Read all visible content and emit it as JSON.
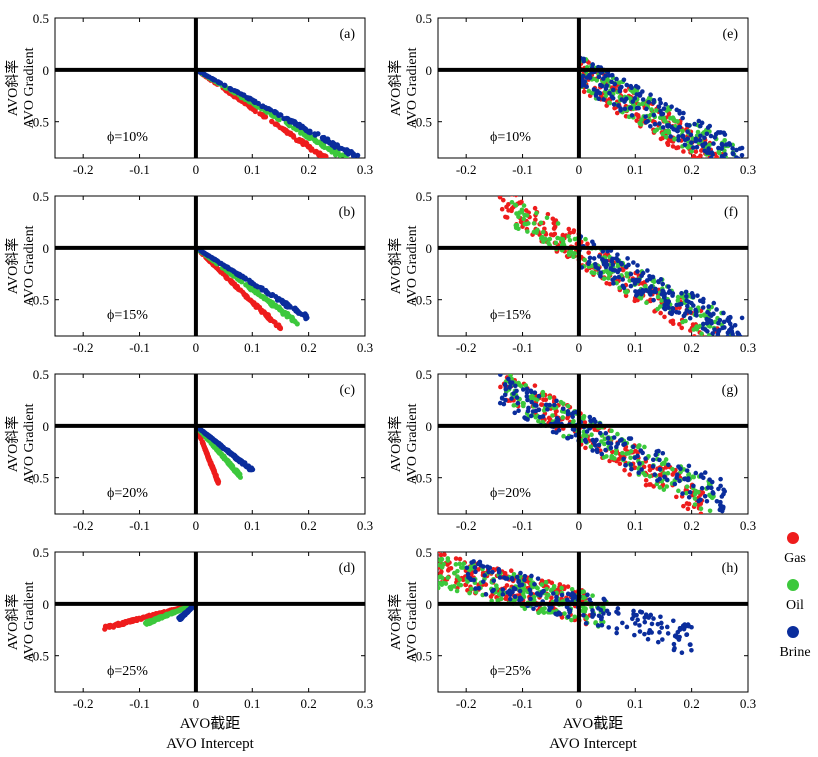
{
  "figure": {
    "ylabel_cn": "AVO斜率",
    "ylabel_en": "AVO Gradient",
    "xlabel_cn": "AVO截距",
    "xlabel_en": "AVO Intercept"
  },
  "legend": [
    {
      "label": "Gas",
      "color": "#ee1c1c"
    },
    {
      "label": "Oil",
      "color": "#3cc83c"
    },
    {
      "label": "Brine",
      "color": "#0a2d9c"
    }
  ],
  "chart_data": [
    {
      "type": "scatter",
      "panel": "(a)",
      "porosity": "ϕ=10%",
      "xlim": [
        -0.25,
        0.3
      ],
      "ylim": [
        -0.85,
        0.5
      ],
      "xticks": [
        "-0.2",
        "-0.1",
        "0",
        "0.1",
        "0.2",
        "0.3"
      ],
      "yticks": [
        "0.5",
        "0",
        "-0.5"
      ],
      "series": [
        {
          "name": "Gas",
          "x": [
            0,
            0.23
          ],
          "y": [
            0,
            -0.85
          ]
        },
        {
          "name": "Oil",
          "x": [
            0,
            0.265
          ],
          "y": [
            0,
            -0.85
          ]
        },
        {
          "name": "Brine",
          "x": [
            0,
            0.29
          ],
          "y": [
            0,
            -0.85
          ]
        }
      ]
    },
    {
      "type": "scatter",
      "panel": "(b)",
      "porosity": "ϕ=15%",
      "xlim": [
        -0.25,
        0.3
      ],
      "ylim": [
        -0.85,
        0.5
      ],
      "xticks": [
        "-0.2",
        "-0.1",
        "0",
        "0.1",
        "0.2",
        "0.3"
      ],
      "yticks": [
        "0.5",
        "0",
        "-0.5"
      ],
      "series": [
        {
          "name": "Gas",
          "x": [
            0,
            0.15
          ],
          "y": [
            0,
            -0.78
          ]
        },
        {
          "name": "Oil",
          "x": [
            0,
            0.18
          ],
          "y": [
            0,
            -0.72
          ]
        },
        {
          "name": "Brine",
          "x": [
            0,
            0.2
          ],
          "y": [
            0,
            -0.68
          ]
        }
      ]
    },
    {
      "type": "scatter",
      "panel": "(c)",
      "porosity": "ϕ=20%",
      "xlim": [
        -0.25,
        0.3
      ],
      "ylim": [
        -0.85,
        0.5
      ],
      "xticks": [
        "-0.2",
        "-0.1",
        "0",
        "0.1",
        "0.2",
        "0.3"
      ],
      "yticks": [
        "0.5",
        "0",
        "-0.5"
      ],
      "series": [
        {
          "name": "Gas",
          "x": [
            0,
            0.04
          ],
          "y": [
            0,
            -0.55
          ]
        },
        {
          "name": "Oil",
          "x": [
            0,
            0.08
          ],
          "y": [
            0,
            -0.49
          ]
        },
        {
          "name": "Brine",
          "x": [
            0,
            0.1
          ],
          "y": [
            0,
            -0.43
          ]
        }
      ]
    },
    {
      "type": "scatter",
      "panel": "(d)",
      "porosity": "ϕ=25%",
      "xlim": [
        -0.25,
        0.3
      ],
      "ylim": [
        -0.85,
        0.5
      ],
      "xticks": [
        "-0.2",
        "-0.1",
        "0",
        "0.1",
        "0.2",
        "0.3"
      ],
      "yticks": [
        "0.5",
        "0",
        "-0.5"
      ],
      "series": [
        {
          "name": "Gas",
          "x": [
            0,
            -0.16
          ],
          "y": [
            0,
            -0.23
          ]
        },
        {
          "name": "Oil",
          "x": [
            0,
            -0.09
          ],
          "y": [
            0,
            -0.19
          ]
        },
        {
          "name": "Brine",
          "x": [
            0,
            -0.03
          ],
          "y": [
            0,
            -0.15
          ]
        }
      ]
    },
    {
      "type": "scatter",
      "panel": "(e)",
      "porosity": "ϕ=10%",
      "xlim": [
        -0.25,
        0.3
      ],
      "ylim": [
        -0.85,
        0.5
      ],
      "xticks": [
        "-0.2",
        "-0.1",
        "0",
        "0.1",
        "0.2",
        "0.3"
      ],
      "yticks": [
        "0.5",
        "0",
        "-0.5"
      ],
      "series": [
        {
          "name": "Gas",
          "x_range": [
            0.0,
            0.26
          ],
          "slope": -3.5
        },
        {
          "name": "Oil",
          "x_range": [
            0.0,
            0.28
          ],
          "slope": -3.15
        },
        {
          "name": "Brine",
          "x_range": [
            0.0,
            0.3
          ],
          "slope": -2.9
        }
      ]
    },
    {
      "type": "scatter",
      "panel": "(f)",
      "porosity": "ϕ=15%",
      "xlim": [
        -0.25,
        0.3
      ],
      "ylim": [
        -0.85,
        0.5
      ],
      "xticks": [
        "-0.2",
        "-0.1",
        "0",
        "0.1",
        "0.2",
        "0.3"
      ],
      "yticks": [
        "0.5",
        "0",
        "-0.5"
      ],
      "series": [
        {
          "name": "Gas",
          "x_range": [
            -0.14,
            0.25
          ],
          "slope": -3.4
        },
        {
          "name": "Oil",
          "x_range": [
            -0.12,
            0.27
          ],
          "slope": -3.0
        },
        {
          "name": "Brine",
          "x_range": [
            0.0,
            0.29
          ],
          "slope": -2.8
        }
      ]
    },
    {
      "type": "scatter",
      "panel": "(g)",
      "porosity": "ϕ=20%",
      "xlim": [
        -0.25,
        0.3
      ],
      "ylim": [
        -0.85,
        0.5
      ],
      "xticks": [
        "-0.2",
        "-0.1",
        "0",
        "0.1",
        "0.2",
        "0.3"
      ],
      "yticks": [
        "0.5",
        "0",
        "-0.5"
      ],
      "series": [
        {
          "name": "Gas",
          "x_range": [
            -0.14,
            0.22
          ],
          "slope": -3.3
        },
        {
          "name": "Oil",
          "x_range": [
            -0.13,
            0.24
          ],
          "slope": -2.9
        },
        {
          "name": "Brine",
          "x_range": [
            -0.14,
            0.26
          ],
          "slope": -2.6
        }
      ]
    },
    {
      "type": "scatter",
      "panel": "(h)",
      "porosity": "ϕ=25%",
      "xlim": [
        -0.25,
        0.3
      ],
      "ylim": [
        -0.85,
        0.5
      ],
      "xticks": [
        "-0.2",
        "-0.1",
        "0",
        "0.1",
        "0.2",
        "0.3"
      ],
      "yticks": [
        "0.5",
        "0",
        "-0.5"
      ],
      "series": [
        {
          "name": "Gas",
          "x_range": [
            -0.25,
            0.02
          ],
          "slope": -1.5
        },
        {
          "name": "Oil",
          "x_range": [
            -0.25,
            0.05
          ],
          "slope": -1.3
        },
        {
          "name": "Brine",
          "x_range": [
            -0.2,
            0.2
          ],
          "slope": -1.6
        }
      ]
    }
  ]
}
